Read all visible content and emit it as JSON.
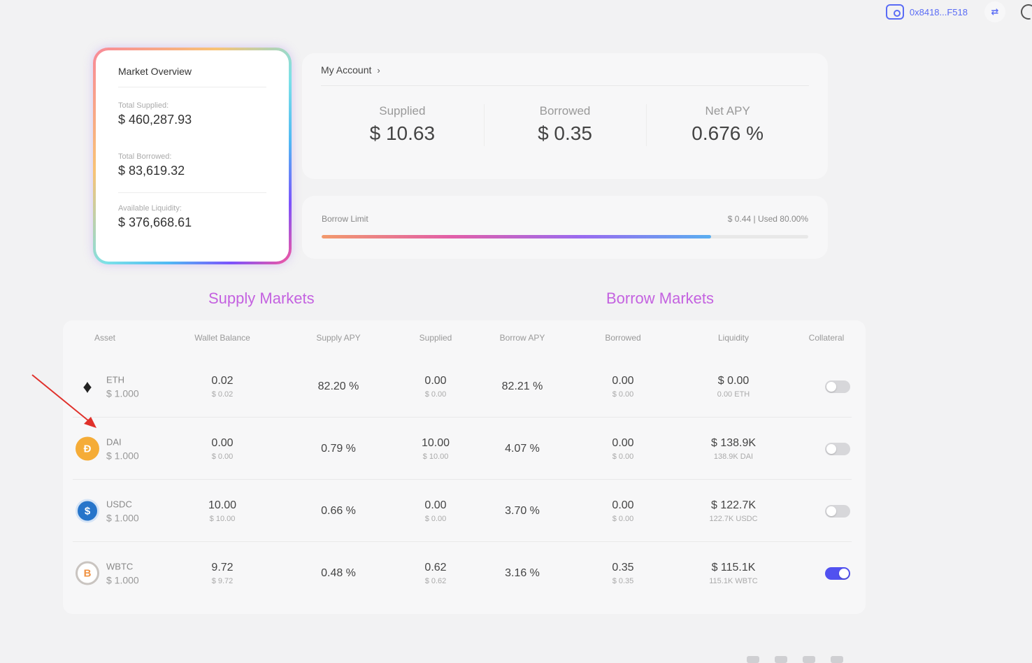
{
  "header": {
    "wallet_address": "0x8418...F518",
    "swap_label": "⇄"
  },
  "market_overview": {
    "title": "Market Overview",
    "total_supplied_label": "Total Supplied:",
    "total_supplied": "$ 460,287.93",
    "total_borrowed_label": "Total Borrowed:",
    "total_borrowed": "$ 83,619.32",
    "available_liquidity_label": "Available Liquidity:",
    "available_liquidity": "$ 376,668.61"
  },
  "account": {
    "title": "My Account",
    "chevron": "›",
    "supplied_label": "Supplied",
    "supplied_value": "$ 10.63",
    "borrowed_label": "Borrowed",
    "borrowed_value": "$ 0.35",
    "net_apy_label": "Net APY",
    "net_apy_value": "0.676 %"
  },
  "borrow_limit": {
    "label": "Borrow Limit",
    "info": "$ 0.44 | Used 80.00%",
    "used_fraction": 0.8
  },
  "sections": {
    "supply_title": "Supply Markets",
    "borrow_title": "Borrow Markets"
  },
  "table": {
    "headers": {
      "asset": "Asset",
      "wallet_balance": "Wallet Balance",
      "supply_apy": "Supply APY",
      "supplied": "Supplied",
      "borrow_apy": "Borrow APY",
      "borrowed": "Borrowed",
      "liquidity": "Liquidity",
      "collateral": "Collateral"
    },
    "rows": [
      {
        "icon": "eth-icon",
        "coin_glyph": "♦",
        "name": "ETH",
        "price": "$ 1.000",
        "wallet_balance": "0.02",
        "wallet_balance_usd": "$ 0.02",
        "supply_apy": "82.20 %",
        "supplied": "0.00",
        "supplied_usd": "$ 0.00",
        "borrow_apy": "82.21 %",
        "borrowed": "0.00",
        "borrowed_usd": "$ 0.00",
        "liquidity": "$ 0.00",
        "liquidity_sub": "0.00 ETH",
        "collateral": false
      },
      {
        "icon": "dai-icon",
        "coin_glyph": "Đ",
        "name": "DAI",
        "price": "$ 1.000",
        "wallet_balance": "0.00",
        "wallet_balance_usd": "$ 0.00",
        "supply_apy": "0.79 %",
        "supplied": "10.00",
        "supplied_usd": "$ 10.00",
        "borrow_apy": "4.07 %",
        "borrowed": "0.00",
        "borrowed_usd": "$ 0.00",
        "liquidity": "$ 138.9K",
        "liquidity_sub": "138.9K DAI",
        "collateral": false
      },
      {
        "icon": "usdc-icon",
        "coin_glyph": "$",
        "name": "USDC",
        "price": "$ 1.000",
        "wallet_balance": "10.00",
        "wallet_balance_usd": "$ 10.00",
        "supply_apy": "0.66 %",
        "supplied": "0.00",
        "supplied_usd": "$ 0.00",
        "borrow_apy": "3.70 %",
        "borrowed": "0.00",
        "borrowed_usd": "$ 0.00",
        "liquidity": "$ 122.7K",
        "liquidity_sub": "122.7K USDC",
        "collateral": false
      },
      {
        "icon": "wbtc-icon",
        "coin_glyph": "B",
        "name": "WBTC",
        "price": "$ 1.000",
        "wallet_balance": "9.72",
        "wallet_balance_usd": "$ 9.72",
        "supply_apy": "0.48 %",
        "supplied": "0.62",
        "supplied_usd": "$ 0.62",
        "borrow_apy": "3.16 %",
        "borrowed": "0.35",
        "borrowed_usd": "$ 0.35",
        "liquidity": "$ 115.1K",
        "liquidity_sub": "115.1K WBTC",
        "collateral": true
      }
    ]
  }
}
